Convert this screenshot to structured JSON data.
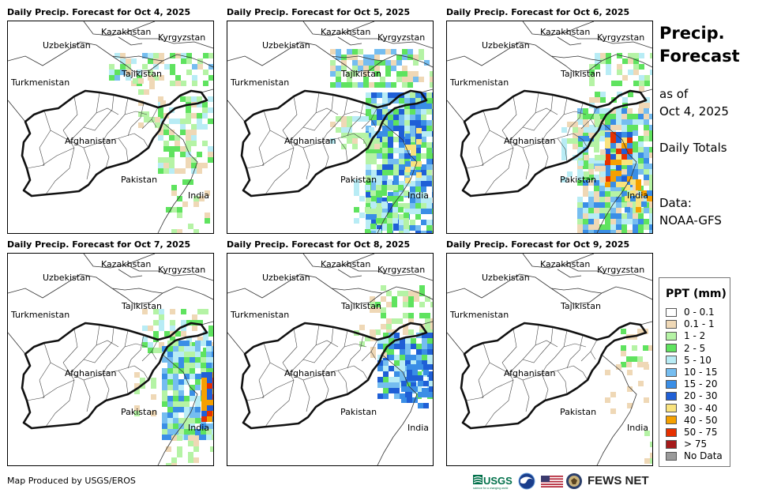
{
  "panels": [
    {
      "title": "Daily Precip. Forecast for Oct 4, 2025"
    },
    {
      "title": "Daily Precip. Forecast for Oct 5, 2025"
    },
    {
      "title": "Daily Precip. Forecast for Oct 6, 2025"
    },
    {
      "title": "Daily Precip. Forecast for Oct 7, 2025"
    },
    {
      "title": "Daily Precip. Forecast for Oct 8, 2025"
    },
    {
      "title": "Daily Precip. Forecast for Oct 9, 2025"
    }
  ],
  "map_labels": {
    "kazakhstan": "Kazakhstan",
    "kyrgyzstan": "Kyrgyzstan",
    "uzbekistan": "Uzbekistan",
    "tajikistan": "Tajikistan",
    "turkmenistan": "Turkmenistan",
    "afghanistan": "Afghanistan",
    "pakistan": "Pakistan",
    "india": "India"
  },
  "side": {
    "title_line1": "Precip.",
    "title_line2": "Forecast",
    "asof_line1": "as of",
    "asof_line2": "Oct 4, 2025",
    "daily": "Daily Totals",
    "data_line1": "Data:",
    "data_line2": "NOAA-GFS"
  },
  "legend": {
    "title": "PPT (mm)",
    "items": [
      {
        "label": "0 - 0.1",
        "color": "#ffffff"
      },
      {
        "label": "0.1 - 1",
        "color": "#efd8b6"
      },
      {
        "label": "1 - 2",
        "color": "#b5f3a5"
      },
      {
        "label": "2 - 5",
        "color": "#5fe35f"
      },
      {
        "label": "5 - 10",
        "color": "#b8ecf5"
      },
      {
        "label": "10 - 15",
        "color": "#75bdf0"
      },
      {
        "label": "15 - 20",
        "color": "#3a8ee6"
      },
      {
        "label": "20 - 30",
        "color": "#1f5fd6"
      },
      {
        "label": "30 - 40",
        "color": "#f9e37d"
      },
      {
        "label": "40 - 50",
        "color": "#f5a000"
      },
      {
        "label": "50 - 75",
        "color": "#e53000"
      },
      {
        "label": "> 75",
        "color": "#a51a1a"
      },
      {
        "label": "No Data",
        "color": "#9a9a9a"
      }
    ]
  },
  "footer": {
    "credit": "Map Produced by USGS/EROS",
    "usgs": "USGS",
    "usgs_tagline": "science for a changing world",
    "fews": "FEWS NET"
  }
}
